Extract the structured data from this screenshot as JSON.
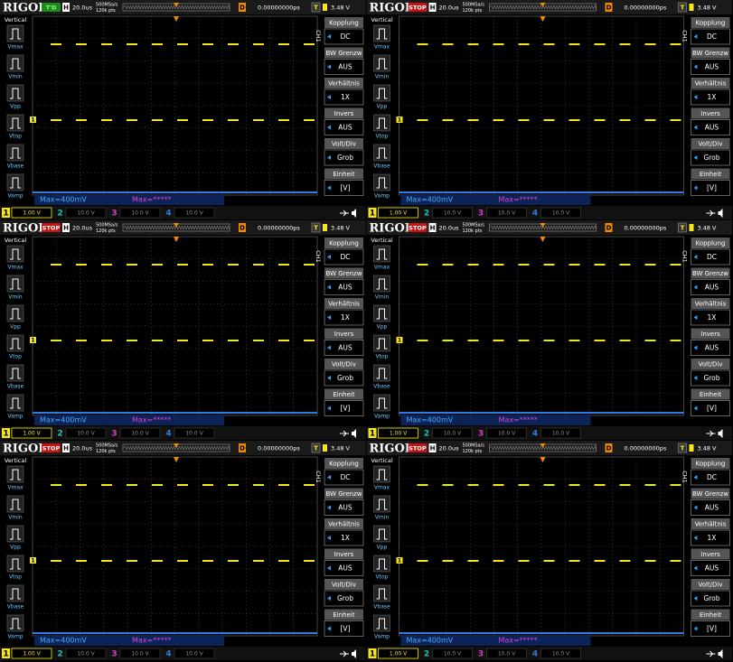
{
  "screens": [
    {
      "brand": "RIGOL",
      "status": "T'D",
      "timebase_label": "H",
      "timebase": "20.0us",
      "sample_rate": "500MSa/s",
      "memory": "120k pts",
      "delay_label": "D",
      "delay": "0.00000000ps",
      "trigger_source": "T",
      "trigger_level": "3.48 V",
      "left_menu": {
        "title": "Vertical",
        "items": [
          "Vmax",
          "Vmin",
          "Vpp",
          "Vtop",
          "Vbase",
          "Vamp"
        ]
      },
      "right_menu": {
        "channel": "CH1",
        "items": [
          {
            "label": "Kopplung",
            "value": "DC"
          },
          {
            "label": "BW Grenzw",
            "value": "AUS"
          },
          {
            "label": "Verhältnis",
            "value": "1X"
          },
          {
            "label": "Invers",
            "value": "AUS"
          },
          {
            "label": "Volt/Div",
            "value": "Grob"
          },
          {
            "label": "Einheit",
            "value": "[V]"
          }
        ]
      },
      "measurements": [
        "Max=400mV",
        "Max=*****"
      ],
      "channels": [
        {
          "number": "1",
          "scale": "1.00 V"
        },
        {
          "number": "2",
          "scale": "10.0 V"
        },
        {
          "number": "3",
          "scale": "10.0 V"
        },
        {
          "number": "4",
          "scale": "10.0 V"
        }
      ]
    },
    {
      "brand": "RIGOL",
      "status": "STOP",
      "timebase_label": "H",
      "timebase": "20.0us",
      "sample_rate": "500MSa/s",
      "memory": "120k pts",
      "delay_label": "D",
      "delay": "0.00000000ps",
      "trigger_source": "T",
      "trigger_level": "3.48 V",
      "left_menu": {
        "title": "Vertical",
        "items": [
          "Vmax",
          "Vmin",
          "Vpp",
          "Vtop",
          "Vbase",
          "Vamp"
        ]
      },
      "right_menu": {
        "channel": "CH1",
        "items": [
          {
            "label": "Kopplung",
            "value": "DC"
          },
          {
            "label": "BW Grenzw",
            "value": "AUS"
          },
          {
            "label": "Verhältnis",
            "value": "1X"
          },
          {
            "label": "Invers",
            "value": "AUS"
          },
          {
            "label": "Volt/Div",
            "value": "Grob"
          },
          {
            "label": "Einheit",
            "value": "[V]"
          }
        ]
      },
      "measurements": [
        "Max=400mV",
        "Max=*****"
      ],
      "channels": [
        {
          "number": "1",
          "scale": "1.00 V"
        },
        {
          "number": "2",
          "scale": "10.0 V"
        },
        {
          "number": "3",
          "scale": "10.0 V"
        },
        {
          "number": "4",
          "scale": "10.0 V"
        }
      ]
    },
    {
      "brand": "RIGOL",
      "status": "STOP",
      "timebase_label": "H",
      "timebase": "20.0us",
      "sample_rate": "500MSa/s",
      "memory": "120k pts",
      "delay_label": "D",
      "delay": "0.00000000ps",
      "trigger_source": "T",
      "trigger_level": "3.48 V",
      "left_menu": {
        "title": "Vertical",
        "items": [
          "Vmax",
          "Vmin",
          "Vpp",
          "Vtop",
          "Vbase",
          "Vamp"
        ]
      },
      "right_menu": {
        "channel": "CH1",
        "items": [
          {
            "label": "Kopplung",
            "value": "DC"
          },
          {
            "label": "BW Grenzw",
            "value": "AUS"
          },
          {
            "label": "Verhältnis",
            "value": "1X"
          },
          {
            "label": "Invers",
            "value": "AUS"
          },
          {
            "label": "Volt/Div",
            "value": "Grob"
          },
          {
            "label": "Einheit",
            "value": "[V]"
          }
        ]
      },
      "measurements": [
        "Max=400mV",
        "Max=*****"
      ],
      "channels": [
        {
          "number": "1",
          "scale": "1.00 V"
        },
        {
          "number": "2",
          "scale": "10.0 V"
        },
        {
          "number": "3",
          "scale": "10.0 V"
        },
        {
          "number": "4",
          "scale": "10.0 V"
        }
      ]
    },
    {
      "brand": "RIGOL",
      "status": "STOP",
      "timebase_label": "H",
      "timebase": "20.0us",
      "sample_rate": "500MSa/s",
      "memory": "120k pts",
      "delay_label": "D",
      "delay": "0.00000000ps",
      "trigger_source": "T",
      "trigger_level": "3.48 V",
      "left_menu": {
        "title": "Vertical",
        "items": [
          "Vmax",
          "Vmin",
          "Vpp",
          "Vtop",
          "Vbase",
          "Vamp"
        ]
      },
      "right_menu": {
        "channel": "CH1",
        "items": [
          {
            "label": "Kopplung",
            "value": "DC"
          },
          {
            "label": "BW Grenzw",
            "value": "AUS"
          },
          {
            "label": "Verhältnis",
            "value": "1X"
          },
          {
            "label": "Invers",
            "value": "AUS"
          },
          {
            "label": "Volt/Div",
            "value": "Grob"
          },
          {
            "label": "Einheit",
            "value": "[V]"
          }
        ]
      },
      "measurements": [
        "Max=400mV",
        "Max=*****"
      ],
      "channels": [
        {
          "number": "1",
          "scale": "1.00 V"
        },
        {
          "number": "2",
          "scale": "10.0 V"
        },
        {
          "number": "3",
          "scale": "10.0 V"
        },
        {
          "number": "4",
          "scale": "10.0 V"
        }
      ]
    },
    {
      "brand": "RIGOL",
      "status": "STOP",
      "timebase_label": "H",
      "timebase": "20.0us",
      "sample_rate": "500MSa/s",
      "memory": "120k pts",
      "delay_label": "D",
      "delay": "0.00000000ps",
      "trigger_source": "T",
      "trigger_level": "3.48 V",
      "left_menu": {
        "title": "Vertical",
        "items": [
          "Vmax",
          "Vmin",
          "Vpp",
          "Vtop",
          "Vbase",
          "Vamp"
        ]
      },
      "right_menu": {
        "channel": "CH1",
        "items": [
          {
            "label": "Kopplung",
            "value": "DC"
          },
          {
            "label": "BW Grenzw",
            "value": "AUS"
          },
          {
            "label": "Verhältnis",
            "value": "1X"
          },
          {
            "label": "Invers",
            "value": "AUS"
          },
          {
            "label": "Volt/Div",
            "value": "Grob"
          },
          {
            "label": "Einheit",
            "value": "[V]"
          }
        ]
      },
      "measurements": [
        "Max=400mV",
        "Max=*****"
      ],
      "channels": [
        {
          "number": "1",
          "scale": "1.00 V"
        },
        {
          "number": "2",
          "scale": "10.0 V"
        },
        {
          "number": "3",
          "scale": "10.0 V"
        },
        {
          "number": "4",
          "scale": "10.0 V"
        }
      ]
    },
    {
      "brand": "RIGOL",
      "status": "STOP",
      "timebase_label": "H",
      "timebase": "20.0us",
      "sample_rate": "500MSa/s",
      "memory": "120k pts",
      "delay_label": "D",
      "delay": "0.00000000ps",
      "trigger_source": "T",
      "trigger_level": "3.48 V",
      "left_menu": {
        "title": "Vertical",
        "items": [
          "Vmax",
          "Vmin",
          "Vpp",
          "Vtop",
          "Vbase",
          "Vamp"
        ]
      },
      "right_menu": {
        "channel": "CH1",
        "items": [
          {
            "label": "Kopplung",
            "value": "DC"
          },
          {
            "label": "BW Grenzw",
            "value": "AUS"
          },
          {
            "label": "Verhältnis",
            "value": "1X"
          },
          {
            "label": "Invers",
            "value": "AUS"
          },
          {
            "label": "Volt/Div",
            "value": "Grob"
          },
          {
            "label": "Einheit",
            "value": "[V]"
          }
        ]
      },
      "measurements": [
        "Max=400mV",
        "Max=*****"
      ],
      "channels": [
        {
          "number": "1",
          "scale": "1.00 V"
        },
        {
          "number": "2",
          "scale": "10.0 V"
        },
        {
          "number": "3",
          "scale": "10.0 V"
        },
        {
          "number": "4",
          "scale": "10.0 V"
        }
      ]
    }
  ]
}
